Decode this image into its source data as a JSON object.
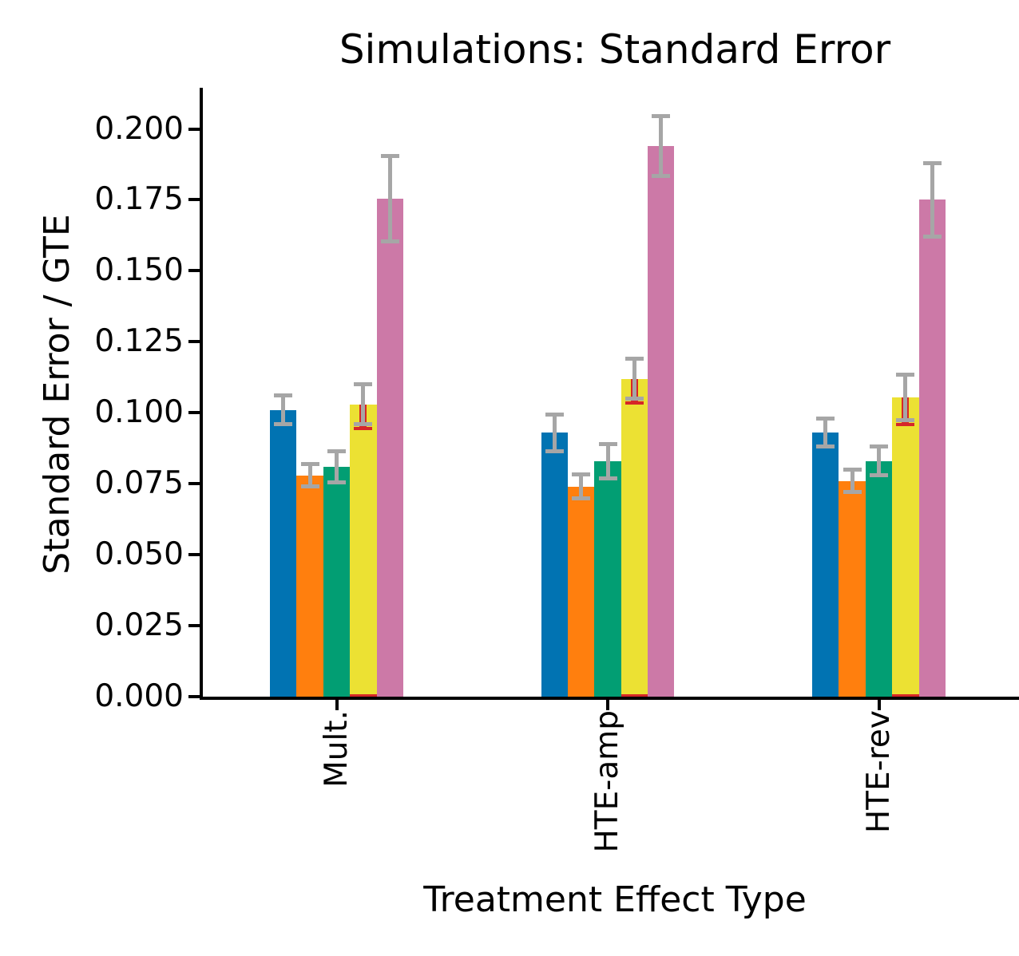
{
  "title": "Simulations: Standard Error",
  "chart_data": {
    "type": "bar",
    "title": "Simulations: Standard Error",
    "xlabel": "Treatment Effect Type",
    "ylabel": "Standard Error / GTE",
    "categories": [
      "Mult.",
      "HTE-amp",
      "HTE-rev"
    ],
    "series": [
      {
        "name": "blue",
        "color": "#0173B2",
        "values": [
          0.101,
          0.093,
          0.093
        ],
        "errors": [
          0.005,
          0.0065,
          0.005
        ]
      },
      {
        "name": "orange",
        "color": "#FF7F0E",
        "values": [
          0.078,
          0.074,
          0.076
        ],
        "errors": [
          0.004,
          0.0042,
          0.004
        ]
      },
      {
        "name": "green",
        "color": "#029E73",
        "values": [
          0.081,
          0.083,
          0.083
        ],
        "errors": [
          0.0055,
          0.006,
          0.005
        ]
      },
      {
        "name": "yellow",
        "color": "#ECE133",
        "values": [
          0.103,
          0.112,
          0.1055
        ],
        "errors": [
          0.007,
          0.007,
          0.008
        ],
        "red_overlay": true
      },
      {
        "name": "pink",
        "color": "#CC79A7",
        "values": [
          0.1755,
          0.194,
          0.175
        ],
        "errors": [
          0.015,
          0.0105,
          0.013
        ]
      }
    ],
    "ylim": [
      0.0,
      0.215
    ],
    "ytick_values": [
      0.0,
      0.025,
      0.05,
      0.075,
      0.1,
      0.125,
      0.15,
      0.175,
      0.2
    ],
    "ytick_labels": [
      "0.000",
      "0.025",
      "0.050",
      "0.075",
      "0.100",
      "0.125",
      "0.150",
      "0.175",
      "0.200"
    ],
    "legend": "none",
    "grid": "off",
    "error_bar_color": "#A6A6A6",
    "red_overlay_color": "#D62728",
    "bar_orientation": "vertical",
    "xtick_label_rotation_deg": 90
  }
}
